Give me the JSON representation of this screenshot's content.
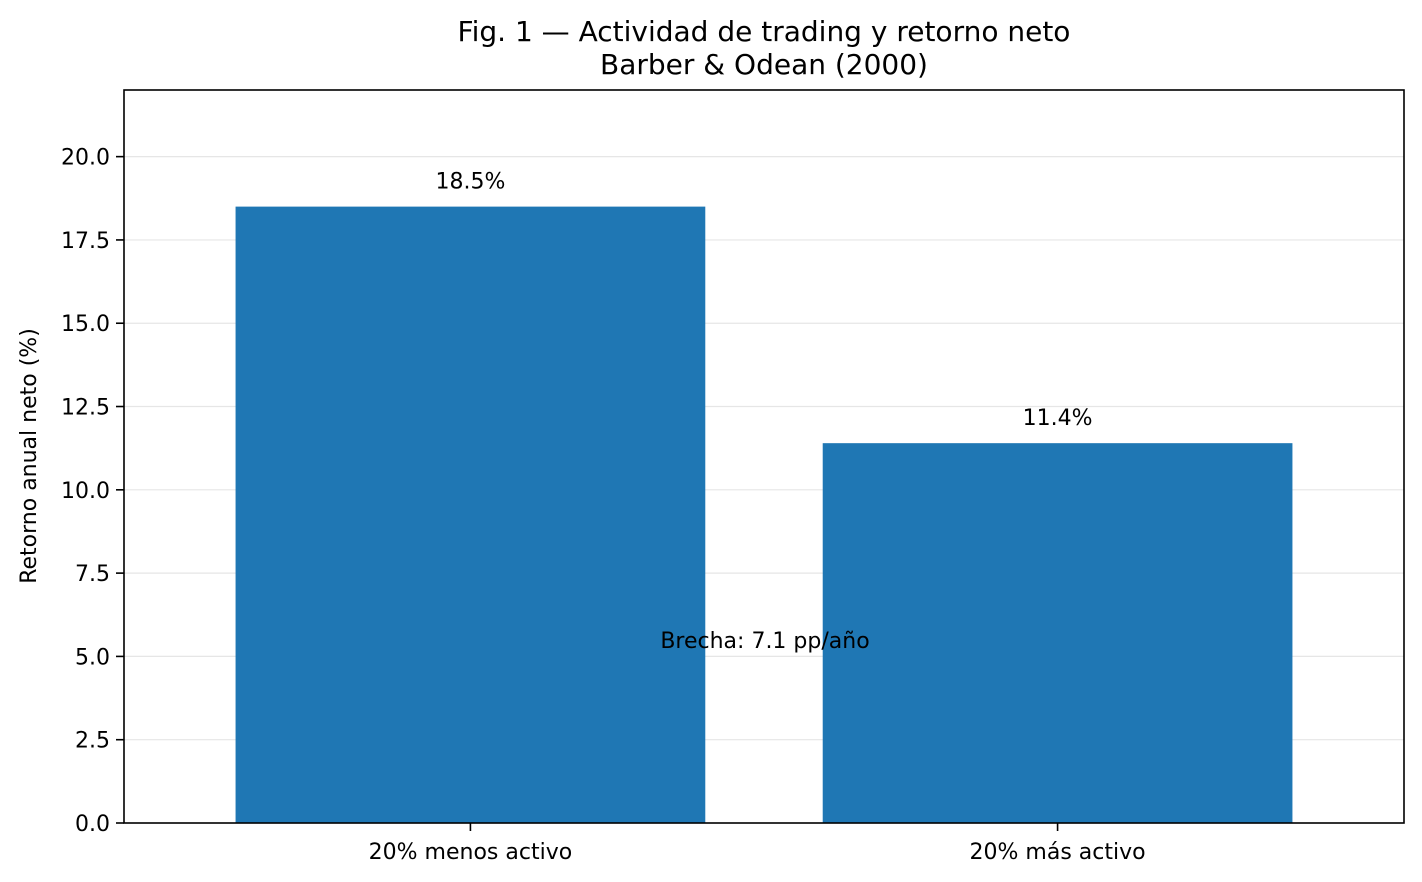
{
  "chart_data": {
    "type": "bar",
    "title": "Fig. 1 — Actividad de trading y retorno neto",
    "subtitle": "Barber & Odean (2000)",
    "xlabel": "",
    "ylabel": "Retorno anual neto (%)",
    "categories": [
      "20% menos activo",
      "20% más activo"
    ],
    "values": [
      18.5,
      11.4
    ],
    "value_labels": [
      "18.5%",
      "11.4%"
    ],
    "ylim": [
      0,
      22
    ],
    "yticks": [
      0.0,
      2.5,
      5.0,
      7.5,
      10.0,
      12.5,
      15.0,
      17.5,
      20.0
    ],
    "ytick_labels": [
      "0.0",
      "2.5",
      "5.0",
      "7.5",
      "10.0",
      "12.5",
      "15.0",
      "17.5",
      "20.0"
    ],
    "grid": "y",
    "bar_color": "#1f77b4",
    "annotation": {
      "text": "Brecha: 7.1 pp/año",
      "y_value": 5.5
    }
  }
}
